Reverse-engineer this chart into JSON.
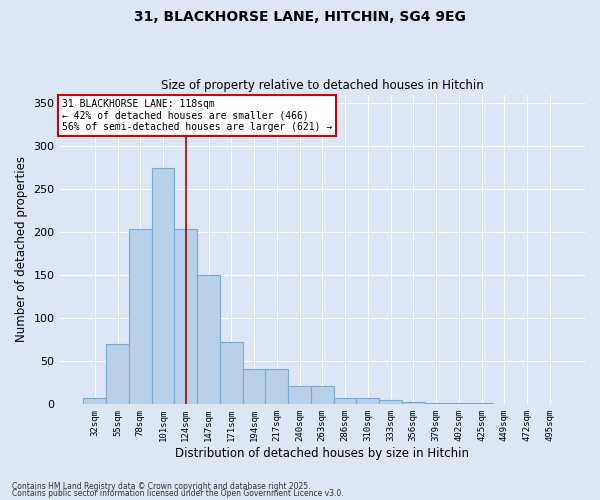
{
  "title1": "31, BLACKHORSE LANE, HITCHIN, SG4 9EG",
  "title2": "Size of property relative to detached houses in Hitchin",
  "xlabel": "Distribution of detached houses by size in Hitchin",
  "ylabel": "Number of detached properties",
  "categories": [
    "32sqm",
    "55sqm",
    "78sqm",
    "101sqm",
    "124sqm",
    "147sqm",
    "171sqm",
    "194sqm",
    "217sqm",
    "240sqm",
    "263sqm",
    "286sqm",
    "310sqm",
    "333sqm",
    "356sqm",
    "379sqm",
    "402sqm",
    "425sqm",
    "449sqm",
    "472sqm",
    "495sqm"
  ],
  "values": [
    7,
    70,
    204,
    275,
    204,
    150,
    72,
    41,
    41,
    21,
    21,
    7,
    7,
    5,
    3,
    2,
    1,
    1,
    0,
    0,
    0
  ],
  "bar_color": "#b8d0e8",
  "bar_edge_color": "#7aabcc",
  "background_color": "#dce6f5",
  "grid_color": "#ffffff",
  "vline_x": 4.0,
  "vline_color": "#aa0000",
  "annotation_text": "31 BLACKHORSE LANE: 118sqm\n← 42% of detached houses are smaller (466)\n56% of semi-detached houses are larger (621) →",
  "annotation_box_facecolor": "#ffffff",
  "annotation_box_edgecolor": "#cc0000",
  "footnote1": "Contains HM Land Registry data © Crown copyright and database right 2025.",
  "footnote2": "Contains public sector information licensed under the Open Government Licence v3.0.",
  "ylim": [
    0,
    360
  ],
  "yticks": [
    0,
    50,
    100,
    150,
    200,
    250,
    300,
    350
  ]
}
